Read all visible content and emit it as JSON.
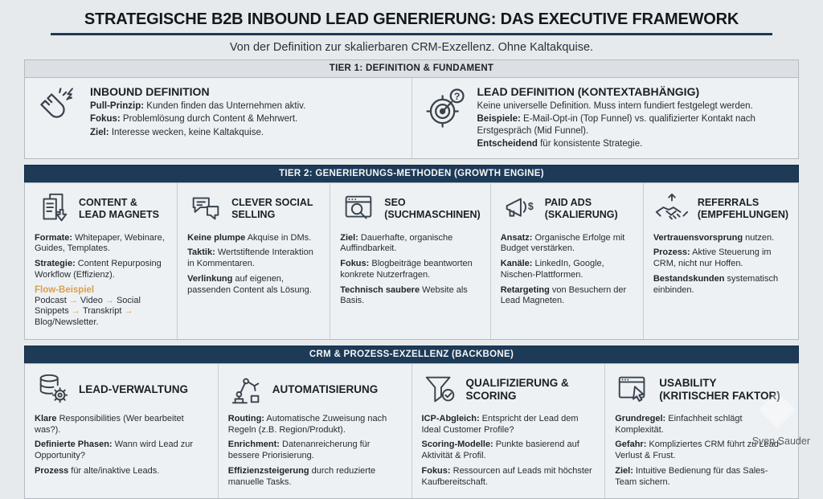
{
  "page": {
    "title": "STRATEGISCHE B2B INBOUND LEAD GENERIERUNG: DAS EXECUTIVE FRAMEWORK",
    "subtitle": "Von der Definition zur skalierbaren CRM-Exzellenz. Ohne Kaltakquise.",
    "credit": "Sven Sauder"
  },
  "theme": {
    "navy": "#1d3a57",
    "orange": "#dc9e4a"
  },
  "tier1": {
    "header": "TIER 1: DEFINITION & FUNDAMENT",
    "cards": [
      {
        "id": "inbound-definition",
        "icon": "magnet-icon",
        "title": "INBOUND DEFINITION",
        "lines": [
          {
            "b": "Pull-Prinzip:",
            "t": " Kunden finden das Unternehmen aktiv."
          },
          {
            "b": "Fokus:",
            "t": " Problemlösung durch Content & Mehrwert."
          },
          {
            "b": "Ziel:",
            "t": " Interesse wecken, keine Kaltakquise."
          }
        ]
      },
      {
        "id": "lead-definition",
        "icon": "target-question-icon",
        "title": "LEAD DEFINITION (KONTEXTABHÄNGIG)",
        "lines": [
          {
            "b": "",
            "t": "Keine universelle Definition. Muss intern fundiert festgelegt werden."
          },
          {
            "b": "Beispiele:",
            "t": " E-Mail-Opt-in (Top Funnel) vs. qualifizierter Kontakt nach Erstgespräch (Mid Funnel)."
          },
          {
            "b": "Entscheidend",
            "t": " für konsistente Strategie."
          }
        ]
      }
    ]
  },
  "tier2": {
    "header": "TIER 2: GENERIERUNGS-METHODEN (GROWTH ENGINE)",
    "cards": [
      {
        "id": "content-lead-magnets",
        "icon": "documents-download-icon",
        "title": "CONTENT & LEAD MAGNETS",
        "lines": [
          {
            "b": "Formate:",
            "t": " Whitepaper, Webinare, Guides, Templates."
          },
          {
            "b": "Strategie:",
            "t": " Content Repurposing Workflow (Effizienz)."
          }
        ],
        "flow_label": "Flow-Beispiel",
        "flow": [
          "Podcast",
          "Video",
          "Social Snippets",
          "Transkript",
          "Blog/Newsletter."
        ]
      },
      {
        "id": "clever-social-selling",
        "icon": "chat-bubbles-icon",
        "title": "CLEVER SOCIAL SELLING",
        "lines": [
          {
            "b": "Keine plumpe",
            "t": " Akquise in DMs."
          },
          {
            "b": "Taktik:",
            "t": " Wertstiftende Interaktion in Kommentaren."
          },
          {
            "b": "Verlinkung",
            "t": " auf eigenen, passenden Content als Lösung."
          }
        ]
      },
      {
        "id": "seo-suchmaschinen",
        "icon": "browser-search-icon",
        "title": "SEO (SUCHMASCHINEN)",
        "lines": [
          {
            "b": "Ziel:",
            "t": " Dauerhafte, organische Auffindbarkeit."
          },
          {
            "b": "Fokus:",
            "t": " Blogbeiträge beantworten konkrete Nutzerfragen."
          },
          {
            "b": "Technisch saubere",
            "t": " Website als Basis."
          }
        ]
      },
      {
        "id": "paid-ads-skalierung",
        "icon": "megaphone-dollar-icon",
        "title": "PAID ADS (SKALIERUNG)",
        "lines": [
          {
            "b": "Ansatz:",
            "t": " Organische Erfolge mit Budget verstärken."
          },
          {
            "b": "Kanäle:",
            "t": " LinkedIn, Google, Nischen-Plattformen."
          },
          {
            "b": "Retargeting",
            "t": " von Besuchern der Lead Magneten."
          }
        ]
      },
      {
        "id": "referrals-empfehlungen",
        "icon": "handshake-growth-icon",
        "title": "REFERRALS (EMPFEHLUNGEN)",
        "lines": [
          {
            "b": "Vertrauensvorsprung",
            "t": " nutzen."
          },
          {
            "b": "Prozess:",
            "t": " Aktive Steuerung im CRM, nicht nur Hoffen."
          },
          {
            "b": "Bestandskunden",
            "t": " systematisch einbinden."
          }
        ]
      }
    ]
  },
  "tier3": {
    "header": "CRM & PROZESS-EXZELLENZ (BACKBONE)",
    "cards": [
      {
        "id": "lead-verwaltung",
        "icon": "database-gear-icon",
        "title": "LEAD-VERWALTUNG",
        "lines": [
          {
            "b": "Klare",
            "t": " Responsibilities (Wer bearbeitet was?)."
          },
          {
            "b": "Definierte Phasen:",
            "t": " Wann wird Lead zur Opportunity?"
          },
          {
            "b": "Prozess",
            "t": " für alte/inaktive Leads."
          }
        ]
      },
      {
        "id": "automatisierung",
        "icon": "robot-arm-icon",
        "title": "AUTOMATISIERUNG",
        "lines": [
          {
            "b": "Routing:",
            "t": " Automatische Zuweisung nach Regeln (z.B. Region/Produkt)."
          },
          {
            "b": "Enrichment:",
            "t": " Datenanreicherung für bessere Priorisierung."
          },
          {
            "b": "Effizienzsteigerung",
            "t": " durch reduzierte manuelle Tasks."
          }
        ]
      },
      {
        "id": "qualifizierung-scoring",
        "icon": "funnel-check-icon",
        "title": "QUALIFIZIERUNG & SCORING",
        "lines": [
          {
            "b": "ICP-Abgleich:",
            "t": " Entspricht der Lead dem Ideal Customer Profile?"
          },
          {
            "b": "Scoring-Modelle:",
            "t": " Punkte basierend auf Aktivität & Profil."
          },
          {
            "b": "Fokus:",
            "t": " Ressourcen auf Leads mit höchster Kaufbereitschaft."
          }
        ]
      },
      {
        "id": "usability-kritischer-faktor",
        "icon": "browser-cursor-icon",
        "title": "USABILITY (KRITISCHER FAKTOR)",
        "lines": [
          {
            "b": "Grundregel:",
            "t": " Einfachheit schlägt Komplexität."
          },
          {
            "b": "Gefahr:",
            "t": " Kompliziertes CRM führt zu Lead-Verlust & Frust."
          },
          {
            "b": "Ziel:",
            "t": " Intuitive Bedienung für das Sales-Team sichern."
          }
        ]
      }
    ]
  }
}
